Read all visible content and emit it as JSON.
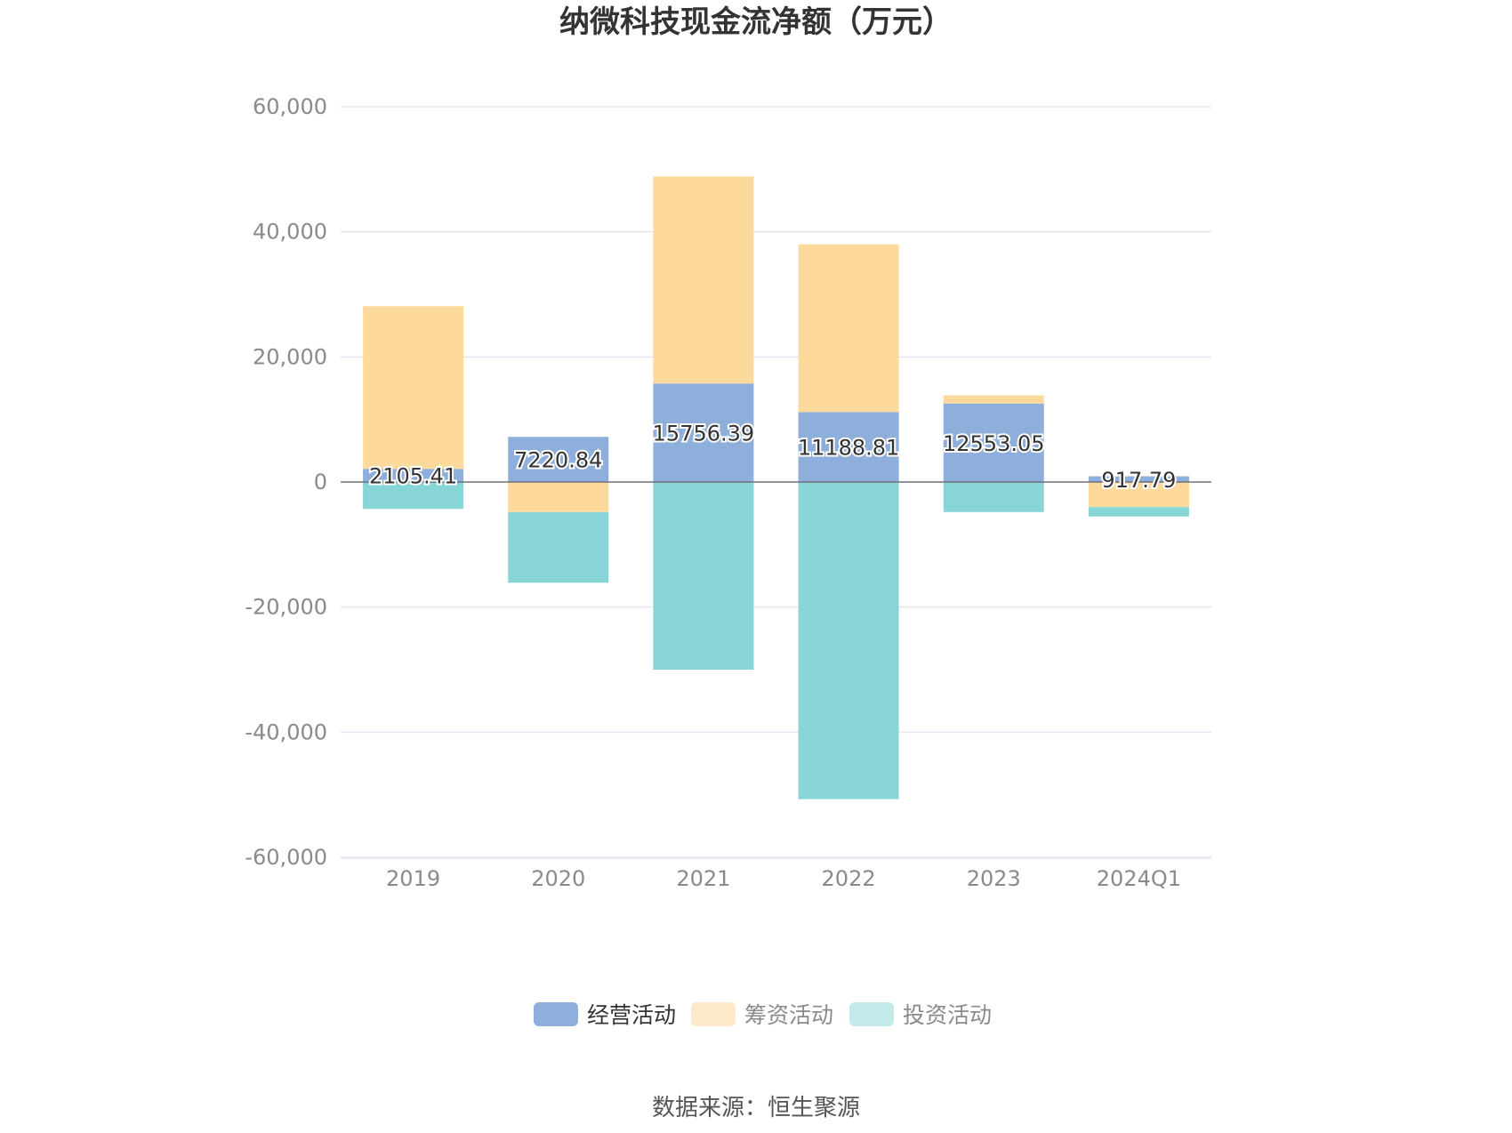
{
  "title": "纳微科技现金流净额（万元）",
  "source": "数据来源：恒生聚源",
  "chart_data": {
    "type": "bar",
    "stacked": true,
    "categories": [
      "2019",
      "2020",
      "2021",
      "2022",
      "2023",
      "2024Q1"
    ],
    "series": [
      {
        "name": "经营活动",
        "color": "#8eaedb",
        "values": [
          2105.41,
          7220.84,
          15756.39,
          11188.81,
          12553.05,
          917.79
        ],
        "labels": [
          "2105.41",
          "7220.84",
          "15756.39",
          "11188.81",
          "12553.05",
          "917.79"
        ]
      },
      {
        "name": "筹资活动",
        "color": "#fdd99b",
        "values": [
          26000,
          -4800,
          33100,
          26800,
          1300,
          -4000
        ]
      },
      {
        "name": "投资活动",
        "color": "#88d5d7",
        "values": [
          -4300,
          -11300,
          -30000,
          -50700,
          -4800,
          -1500
        ]
      }
    ],
    "ylim": [
      -60000,
      60000
    ],
    "yticks": [
      60000,
      40000,
      20000,
      0,
      -20000,
      -40000,
      -60000
    ],
    "ytick_labels": [
      "60,000",
      "40,000",
      "20,000",
      "0",
      "-20,000",
      "-40,000",
      "-60,000"
    ],
    "grid": true,
    "legend": "bottom-center",
    "legend_colors": [
      "#8eaedb",
      "#fee9c8",
      "#c3eaeb"
    ],
    "legend_text_colors": [
      "#333333",
      "#8a8a8a",
      "#8a8a8a"
    ]
  }
}
